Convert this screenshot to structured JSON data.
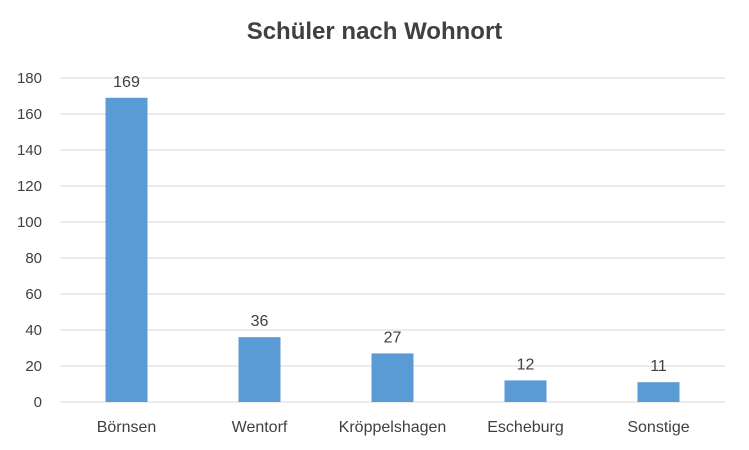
{
  "chart_data": {
    "type": "bar",
    "title": "Schüler nach Wohnort",
    "categories": [
      "Börnsen",
      "Wentorf",
      "Kröppelshagen",
      "Escheburg",
      "Sonstige"
    ],
    "values": [
      169,
      36,
      27,
      12,
      11
    ],
    "ylim": [
      0,
      180
    ],
    "yticks": [
      0,
      20,
      40,
      60,
      80,
      100,
      120,
      140,
      160,
      180
    ],
    "grid": true,
    "legend": "none",
    "bar_color": "#5b9bd5"
  }
}
